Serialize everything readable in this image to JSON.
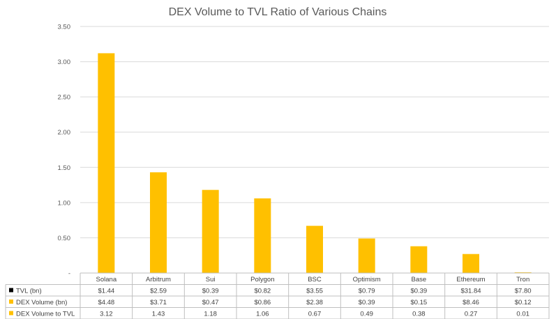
{
  "chart_data": {
    "type": "bar",
    "title": "DEX Volume to TVL Ratio of Various Chains",
    "categories": [
      "Solana",
      "Arbitrum",
      "Sui",
      "Polygon",
      "BSC",
      "Optimism",
      "Base",
      "Ethereum",
      "Tron"
    ],
    "ylim": [
      0,
      3.5
    ],
    "yticks": [
      "-",
      "0.50",
      "1.00",
      "1.50",
      "2.00",
      "2.50",
      "3.00",
      "3.50"
    ],
    "ytick_values": [
      0,
      0.5,
      1.0,
      1.5,
      2.0,
      2.5,
      3.0,
      3.5
    ],
    "grid": true,
    "bar_color": "#FFC000",
    "series": [
      {
        "name": "DEX Volume to TVL",
        "values": [
          3.12,
          1.43,
          1.18,
          1.06,
          0.67,
          0.49,
          0.38,
          0.27,
          0.01
        ]
      }
    ],
    "data_table": {
      "rows": [
        {
          "label": "TVL (bn)",
          "marker_color": "#000000",
          "values": [
            "$1.44",
            "$2.59",
            "$0.39",
            "$0.82",
            "$3.55",
            "$0.79",
            "$0.39",
            "$31.84",
            "$7.80"
          ]
        },
        {
          "label": "DEX Volume (bn)",
          "marker_color": "#FFC000",
          "values": [
            "$4.48",
            "$3.71",
            "$0.47",
            "$0.86",
            "$2.38",
            "$0.39",
            "$0.15",
            "$8.46",
            "$0.12"
          ]
        },
        {
          "label": "DEX Volume to TVL",
          "marker_color": "#FFC000",
          "values": [
            "3.12",
            "1.43",
            "1.18",
            "1.06",
            "0.67",
            "0.49",
            "0.38",
            "0.27",
            "0.01"
          ]
        }
      ]
    }
  }
}
